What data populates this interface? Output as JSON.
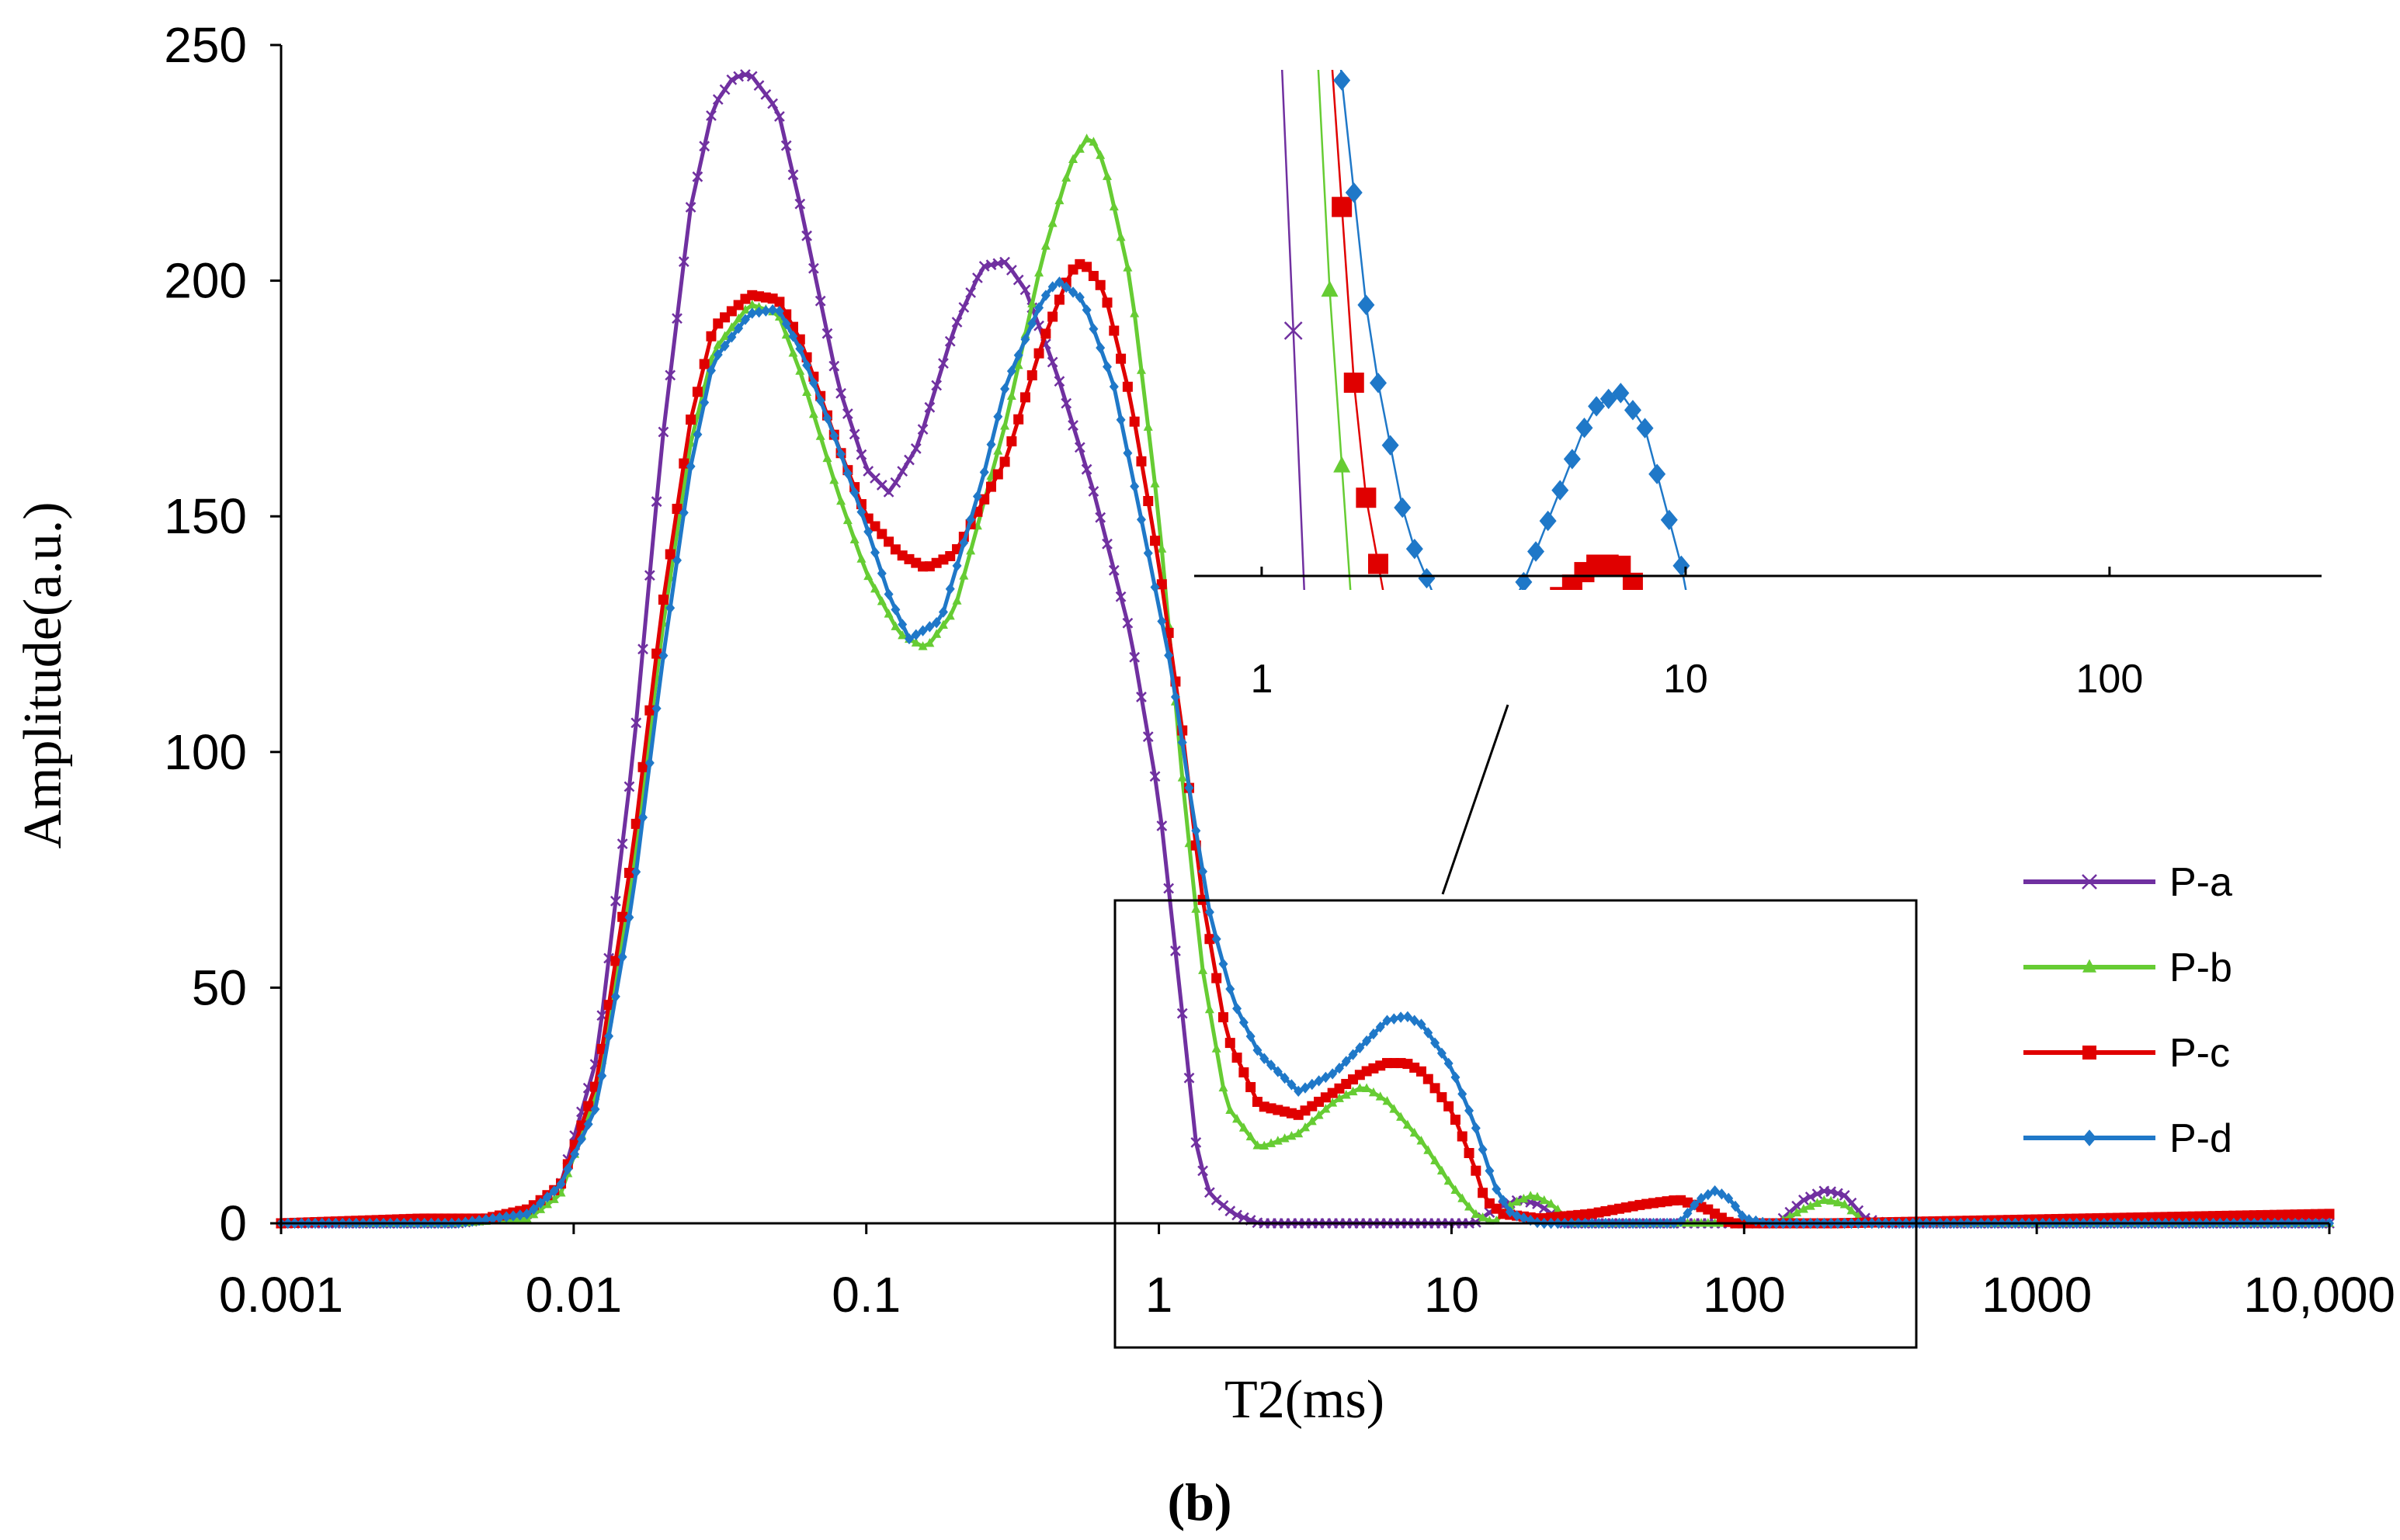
{
  "chart_data": {
    "type": "line",
    "panel_label": "(b)",
    "title": "",
    "xlabel": "T2(ms)",
    "ylabel": "Amplitude(a.u.)",
    "xscale": "log",
    "xlim": [
      0.001,
      10000
    ],
    "ylim": [
      0,
      250
    ],
    "x_tick_values": [
      0.001,
      0.01,
      0.1,
      1,
      10,
      100,
      1000,
      10000
    ],
    "x_tick_labels": [
      "0.001",
      "0.01",
      "0.1",
      "1",
      "10",
      "100",
      "1000",
      "10,000"
    ],
    "y_tick_values": [
      0,
      50,
      100,
      150,
      200,
      250
    ],
    "y_tick_labels": [
      "0",
      "50",
      "100",
      "150",
      "200",
      "250"
    ],
    "legend_position": "right",
    "series": [
      {
        "name": "P-a",
        "color": "#7030A0",
        "marker": "x",
        "points": [
          [
            0.001,
            0
          ],
          [
            0.004,
            0
          ],
          [
            0.007,
            2
          ],
          [
            0.009,
            8
          ],
          [
            0.012,
            35
          ],
          [
            0.016,
            100
          ],
          [
            0.02,
            165
          ],
          [
            0.025,
            215
          ],
          [
            0.03,
            237
          ],
          [
            0.035,
            243
          ],
          [
            0.04,
            244
          ],
          [
            0.05,
            236
          ],
          [
            0.06,
            215
          ],
          [
            0.08,
            178
          ],
          [
            0.1,
            160
          ],
          [
            0.12,
            155
          ],
          [
            0.15,
            165
          ],
          [
            0.2,
            190
          ],
          [
            0.25,
            203
          ],
          [
            0.3,
            204
          ],
          [
            0.35,
            198
          ],
          [
            0.45,
            180
          ],
          [
            0.6,
            155
          ],
          [
            0.8,
            125
          ],
          [
            1,
            90
          ],
          [
            1.2,
            45
          ],
          [
            1.35,
            15
          ],
          [
            1.5,
            6
          ],
          [
            1.8,
            2
          ],
          [
            2.2,
            0
          ],
          [
            5,
            0
          ],
          [
            12,
            0
          ],
          [
            14,
            3
          ],
          [
            17,
            5
          ],
          [
            20,
            4
          ],
          [
            24,
            0
          ],
          [
            100,
            0
          ],
          [
            130,
            0
          ],
          [
            160,
            5
          ],
          [
            190,
            7
          ],
          [
            220,
            6
          ],
          [
            260,
            1
          ],
          [
            300,
            0
          ],
          [
            10000,
            0
          ]
        ]
      },
      {
        "name": "P-b",
        "color": "#66CC33",
        "marker": "triangle",
        "points": [
          [
            0.001,
            0
          ],
          [
            0.004,
            0
          ],
          [
            0.007,
            1
          ],
          [
            0.009,
            6
          ],
          [
            0.012,
            28
          ],
          [
            0.016,
            75
          ],
          [
            0.02,
            125
          ],
          [
            0.025,
            165
          ],
          [
            0.03,
            185
          ],
          [
            0.04,
            195
          ],
          [
            0.05,
            193
          ],
          [
            0.06,
            180
          ],
          [
            0.08,
            155
          ],
          [
            0.1,
            138
          ],
          [
            0.13,
            125
          ],
          [
            0.16,
            122
          ],
          [
            0.2,
            130
          ],
          [
            0.3,
            170
          ],
          [
            0.4,
            205
          ],
          [
            0.5,
            225
          ],
          [
            0.58,
            231
          ],
          [
            0.65,
            225
          ],
          [
            0.8,
            200
          ],
          [
            1,
            150
          ],
          [
            1.2,
            95
          ],
          [
            1.4,
            55
          ],
          [
            1.7,
            25
          ],
          [
            2.2,
            16
          ],
          [
            3,
            19
          ],
          [
            4,
            26
          ],
          [
            5,
            29
          ],
          [
            6,
            26
          ],
          [
            8,
            17
          ],
          [
            10,
            8
          ],
          [
            12,
            2
          ],
          [
            14,
            0
          ],
          [
            16,
            4
          ],
          [
            19,
            6
          ],
          [
            22,
            4
          ],
          [
            26,
            0
          ],
          [
            100,
            0
          ],
          [
            130,
            0
          ],
          [
            160,
            3
          ],
          [
            190,
            5
          ],
          [
            220,
            4
          ],
          [
            260,
            0
          ],
          [
            10000,
            0
          ]
        ]
      },
      {
        "name": "P-c",
        "color": "#E00000",
        "marker": "square",
        "points": [
          [
            0.001,
            0
          ],
          [
            0.003,
            1
          ],
          [
            0.005,
            1
          ],
          [
            0.007,
            3
          ],
          [
            0.009,
            8
          ],
          [
            0.012,
            30
          ],
          [
            0.016,
            80
          ],
          [
            0.02,
            130
          ],
          [
            0.025,
            170
          ],
          [
            0.03,
            190
          ],
          [
            0.04,
            197
          ],
          [
            0.05,
            196
          ],
          [
            0.06,
            187
          ],
          [
            0.08,
            165
          ],
          [
            0.1,
            150
          ],
          [
            0.13,
            142
          ],
          [
            0.16,
            139
          ],
          [
            0.2,
            142
          ],
          [
            0.3,
            162
          ],
          [
            0.4,
            187
          ],
          [
            0.5,
            202
          ],
          [
            0.55,
            204
          ],
          [
            0.65,
            198
          ],
          [
            0.8,
            175
          ],
          [
            1,
            140
          ],
          [
            1.2,
            105
          ],
          [
            1.4,
            70
          ],
          [
            1.7,
            40
          ],
          [
            2.2,
            25
          ],
          [
            3,
            23
          ],
          [
            4,
            28
          ],
          [
            5,
            32
          ],
          [
            6,
            34
          ],
          [
            7,
            34
          ],
          [
            8,
            32
          ],
          [
            10,
            24
          ],
          [
            12,
            12
          ],
          [
            13,
            5
          ],
          [
            15,
            2
          ],
          [
            20,
            1
          ],
          [
            30,
            2
          ],
          [
            45,
            4
          ],
          [
            60,
            5
          ],
          [
            75,
            3
          ],
          [
            90,
            0
          ],
          [
            200,
            0
          ],
          [
            10000,
            2
          ]
        ]
      },
      {
        "name": "P-d",
        "color": "#1F78C8",
        "marker": "diamond",
        "points": [
          [
            0.001,
            0
          ],
          [
            0.004,
            0
          ],
          [
            0.007,
            2
          ],
          [
            0.009,
            8
          ],
          [
            0.012,
            25
          ],
          [
            0.016,
            70
          ],
          [
            0.02,
            118
          ],
          [
            0.025,
            160
          ],
          [
            0.03,
            183
          ],
          [
            0.04,
            193
          ],
          [
            0.05,
            194
          ],
          [
            0.06,
            185
          ],
          [
            0.08,
            165
          ],
          [
            0.1,
            148
          ],
          [
            0.12,
            133
          ],
          [
            0.14,
            124
          ],
          [
            0.18,
            128
          ],
          [
            0.25,
            158
          ],
          [
            0.3,
            178
          ],
          [
            0.4,
            196
          ],
          [
            0.45,
            200
          ],
          [
            0.55,
            196
          ],
          [
            0.7,
            178
          ],
          [
            0.9,
            145
          ],
          [
            1.1,
            118
          ],
          [
            1.3,
            88
          ],
          [
            1.5,
            65
          ],
          [
            1.8,
            47
          ],
          [
            2.2,
            36
          ],
          [
            3,
            28
          ],
          [
            4,
            32
          ],
          [
            5,
            38
          ],
          [
            6,
            43
          ],
          [
            7,
            44
          ],
          [
            8,
            42
          ],
          [
            10,
            33
          ],
          [
            12,
            21
          ],
          [
            14,
            8
          ],
          [
            16,
            2
          ],
          [
            20,
            0
          ],
          [
            60,
            0
          ],
          [
            70,
            5
          ],
          [
            80,
            7
          ],
          [
            90,
            5
          ],
          [
            100,
            1
          ],
          [
            120,
            0
          ],
          [
            10000,
            0
          ]
        ]
      }
    ],
    "inset": {
      "xlim": [
        0.8,
        300
      ],
      "x_tick_values": [
        1,
        10,
        100
      ],
      "x_tick_labels": [
        "1",
        "10",
        "100"
      ],
      "data_range_x": [
        0.8,
        300
      ],
      "data_range_y": [
        0,
        60
      ],
      "zoom_box_x": [
        0.8,
        300
      ],
      "zoom_box_y": [
        -30,
        70
      ]
    }
  }
}
